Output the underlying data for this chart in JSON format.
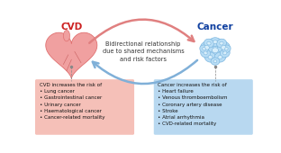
{
  "bg_color": "#ffffff",
  "cvd_label": "CVD",
  "cancer_label": "Cancer",
  "arrow_text": "Bidirectional relationship\ndue to shared mechanisms\nand risk factors",
  "cvd_box_color": "#f5c0b8",
  "cancer_box_color": "#b8d8f0",
  "cvd_box_text_title": "CVD increases the risk of",
  "cvd_box_items": [
    "Lung cancer",
    "Gastrointestinal cancer",
    "Urinary cancer",
    "Haematological cancer",
    "Cancer-related mortality"
  ],
  "cancer_box_text_title": "Cancer increases the risk of",
  "cancer_box_items": [
    "Heart failure",
    "Venous thromboembolism",
    "Coronary artery disease",
    "Stroke",
    "Atrial arrhythmia",
    "CVD-related mortality"
  ],
  "heart_fill": "#f0a0a0",
  "heart_edge": "#e07070",
  "heart_detail": "#c86060",
  "cell_fill": "#b8ddf5",
  "cell_edge": "#80b8e0",
  "cell_inner": "#d8eefa",
  "arrow_right_color": "#e08080",
  "arrow_left_color": "#80b0d8",
  "cvd_label_color": "#cc2020",
  "cancer_label_color": "#1040a0",
  "text_color": "#333333",
  "dot_color": "#888888"
}
